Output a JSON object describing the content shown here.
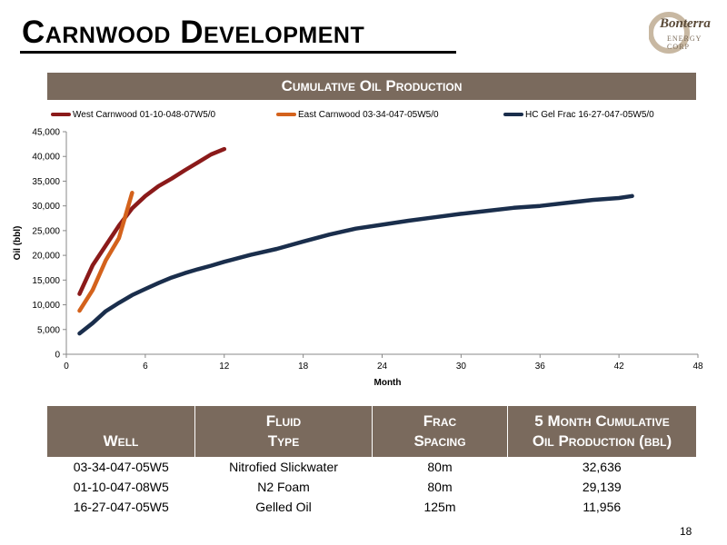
{
  "header": {
    "title": "Carnwood Development",
    "logo_text": "Bonterra",
    "logo_subtext": "ENERGY CORP"
  },
  "banner": {
    "title": "Cumulative Oil Production"
  },
  "chart_data": {
    "type": "line",
    "title": "Cumulative Oil Production",
    "xlabel": "Month",
    "ylabel": "Oil (bbl)",
    "xlim": [
      0,
      48
    ],
    "ylim": [
      0,
      45000
    ],
    "x_ticks": [
      0,
      6,
      12,
      18,
      24,
      30,
      36,
      42,
      48
    ],
    "y_ticks": [
      0,
      5000,
      10000,
      15000,
      20000,
      25000,
      30000,
      35000,
      40000,
      45000
    ],
    "y_tick_labels": [
      "0",
      "5,000",
      "10,000",
      "15,000",
      "20,000",
      "25,000",
      "30,000",
      "35,000",
      "40,000",
      "45,000"
    ],
    "grid": false,
    "legend_position": "top",
    "series": [
      {
        "name": "West Carnwood 01-10-048-07W5/0",
        "color": "#8b1a1a",
        "x": [
          1,
          2,
          3,
          4,
          5,
          6,
          7,
          8,
          9,
          10,
          11,
          12
        ],
        "y": [
          12200,
          18000,
          22000,
          26000,
          29500,
          32000,
          34000,
          35500,
          37200,
          38800,
          40400,
          41500
        ]
      },
      {
        "name": "East Carnwood 03-34-047-05W5/0",
        "color": "#d4621c",
        "x": [
          1,
          2,
          3,
          4,
          5
        ],
        "y": [
          8800,
          13000,
          19000,
          23500,
          32636
        ]
      },
      {
        "name": "HC Gel Frac 16-27-047-05W5/0",
        "color": "#1a2e4c",
        "x": [
          1,
          2,
          3,
          4,
          5,
          6,
          7,
          8,
          9,
          10,
          11,
          12,
          14,
          16,
          18,
          20,
          22,
          24,
          26,
          28,
          30,
          32,
          34,
          36,
          38,
          40,
          42,
          43
        ],
        "y": [
          4200,
          6300,
          8700,
          10400,
          11956,
          13200,
          14400,
          15500,
          16400,
          17200,
          17900,
          18700,
          20100,
          21300,
          22800,
          24200,
          25400,
          26200,
          27000,
          27700,
          28400,
          29000,
          29600,
          30000,
          30600,
          31200,
          31600,
          32000
        ]
      }
    ]
  },
  "table": {
    "headers": [
      [
        "Well"
      ],
      [
        "Fluid",
        "Type"
      ],
      [
        "Frac",
        "Spacing"
      ],
      [
        "5 Month Cumulative",
        "Oil Production (bbl)"
      ]
    ],
    "rows": [
      [
        "03-34-047-05W5",
        "Nitrofied Slickwater",
        "80m",
        "32,636"
      ],
      [
        "01-10-047-08W5",
        "N2 Foam",
        "80m",
        "29,139"
      ],
      [
        "16-27-047-05W5",
        "Gelled Oil",
        "125m",
        "11,956"
      ]
    ]
  },
  "footer": {
    "page_number": "18"
  }
}
